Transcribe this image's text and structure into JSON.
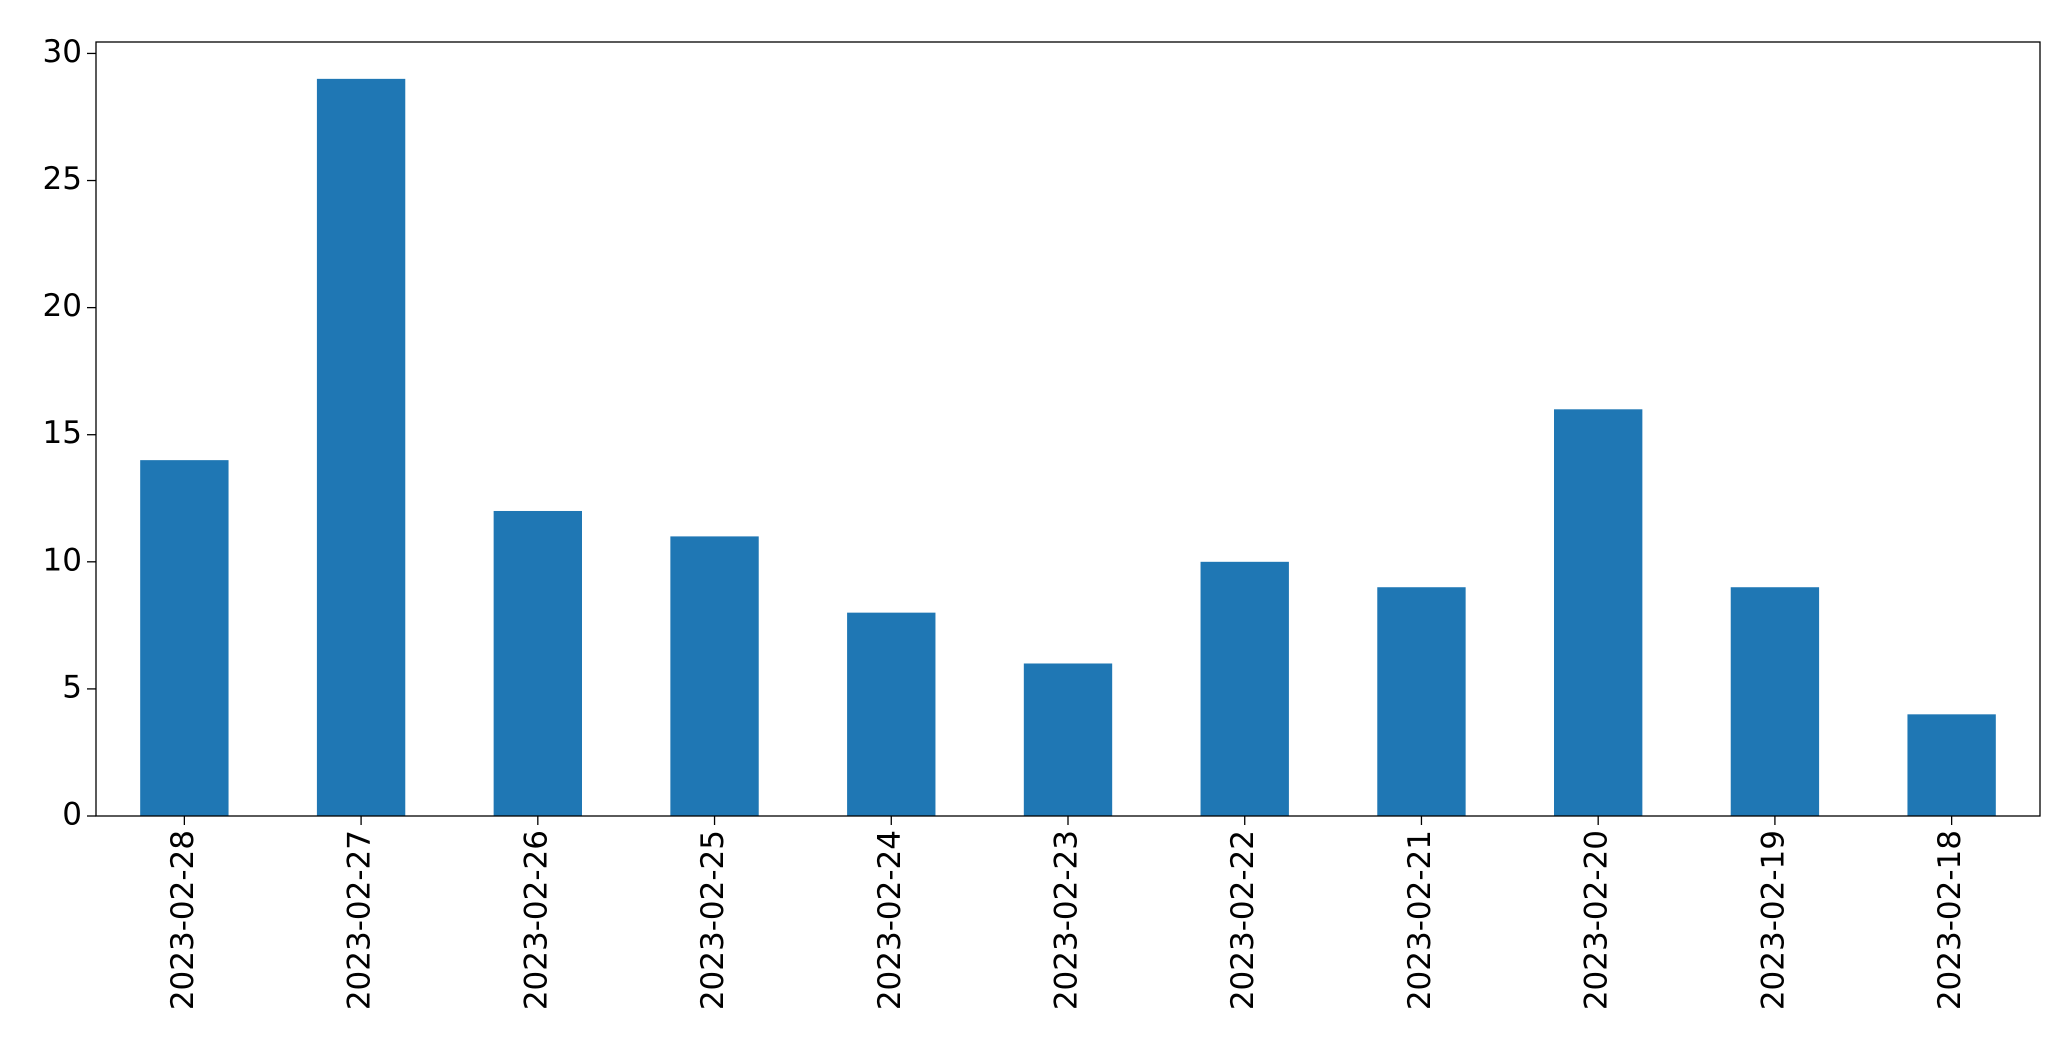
{
  "chart_data": {
    "type": "bar",
    "categories": [
      "2023-02-28",
      "2023-02-27",
      "2023-02-26",
      "2023-02-25",
      "2023-02-24",
      "2023-02-23",
      "2023-02-22",
      "2023-02-21",
      "2023-02-20",
      "2023-02-19",
      "2023-02-18"
    ],
    "values": [
      14,
      29,
      12,
      11,
      8,
      6,
      10,
      9,
      16,
      9,
      4
    ],
    "color": "#1f77b4",
    "ylim": [
      0,
      30.45
    ],
    "yticks": [
      0,
      5,
      10,
      15,
      20,
      25,
      30
    ],
    "grid": false
  }
}
